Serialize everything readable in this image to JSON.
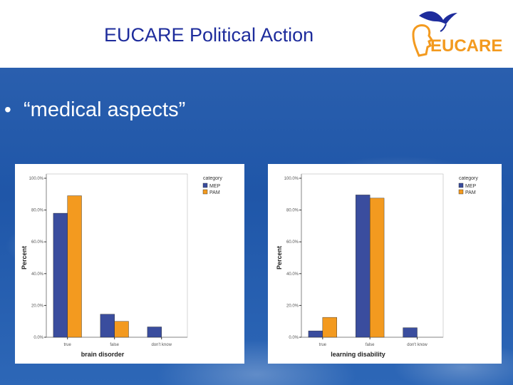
{
  "header": {
    "title": "EUCARE Political Action",
    "logo_text": "EUCARE"
  },
  "bullet": {
    "symbol": "•",
    "text": "“medical aspects”"
  },
  "colors": {
    "MEP": "#3a4d9e",
    "PAM": "#f39a1f",
    "title": "#1e2c9c"
  },
  "chart_data": [
    {
      "type": "bar",
      "categories": [
        "true",
        "false",
        "don't know"
      ],
      "series": [
        {
          "name": "MEP",
          "values": [
            78.0,
            14.5,
            6.5
          ]
        },
        {
          "name": "PAM",
          "values": [
            89.0,
            10.0,
            0
          ]
        }
      ],
      "xlabel": "brain disorder",
      "ylabel": "Percent",
      "yticks": [
        "0.0%",
        "20.0%",
        "40.0%",
        "60.0%",
        "80.0%",
        "100.0%"
      ],
      "ylim": [
        0,
        100
      ],
      "legend_title": "category",
      "legend_position": "top-right"
    },
    {
      "type": "bar",
      "categories": [
        "true",
        "false",
        "don't know"
      ],
      "series": [
        {
          "name": "MEP",
          "values": [
            4.0,
            89.5,
            6.0
          ]
        },
        {
          "name": "PAM",
          "values": [
            12.5,
            87.5,
            0
          ]
        }
      ],
      "xlabel": "learning disability",
      "ylabel": "Percent",
      "yticks": [
        "0.0%",
        "20.0%",
        "40.0%",
        "60.0%",
        "80.0%",
        "100.0%"
      ],
      "ylim": [
        0,
        100
      ],
      "legend_title": "category",
      "legend_position": "top-right"
    }
  ]
}
